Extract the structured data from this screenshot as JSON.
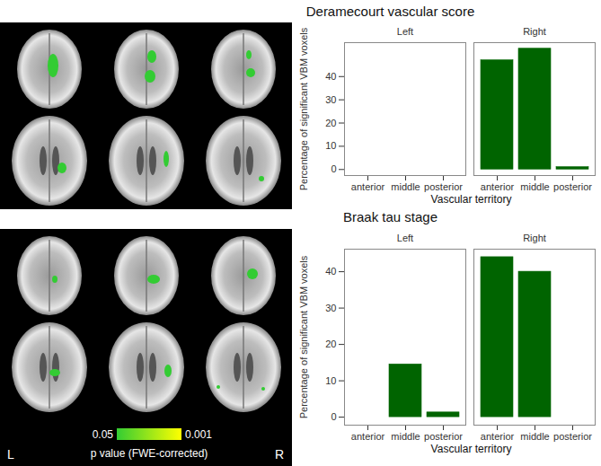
{
  "chart_data": [
    {
      "type": "bar",
      "title": "Deramecourt vascular score",
      "categories": [
        "anterior",
        "middle",
        "posterior"
      ],
      "panels": [
        {
          "name": "Left",
          "values": [
            0,
            0,
            0
          ]
        },
        {
          "name": "Right",
          "values": [
            47,
            52,
            1
          ]
        }
      ],
      "x_label": "Vascular territory",
      "y_label": "Percentage of significant VBM voxels",
      "color": "#006400",
      "ylim": [
        -2.6,
        54.6
      ],
      "yticks": [
        0,
        10,
        20,
        30,
        40
      ]
    },
    {
      "type": "bar",
      "title": "Braak tau stage",
      "categories": [
        "anterior",
        "middle",
        "posterior"
      ],
      "panels": [
        {
          "name": "Left",
          "values": [
            0,
            14.5,
            1.3
          ]
        },
        {
          "name": "Right",
          "values": [
            44,
            40,
            0
          ]
        }
      ],
      "x_label": "Vascular territory",
      "y_label": "Percentage of significant VBM voxels",
      "color": "#006400",
      "ylim": [
        -2.2,
        46.2
      ],
      "yticks": [
        0,
        10,
        20,
        30,
        40
      ]
    }
  ],
  "brain_images": {
    "hemisphere_labels": [
      "L",
      "R"
    ],
    "colorbar": {
      "label": "p value (FWE-corrected)",
      "colors": [
        "#33cc33",
        "#ffff00"
      ],
      "ticks": [
        {
          "value": 0.05,
          "label": "0.05"
        },
        {
          "value": 0.001,
          "label": "0.001"
        }
      ]
    }
  }
}
